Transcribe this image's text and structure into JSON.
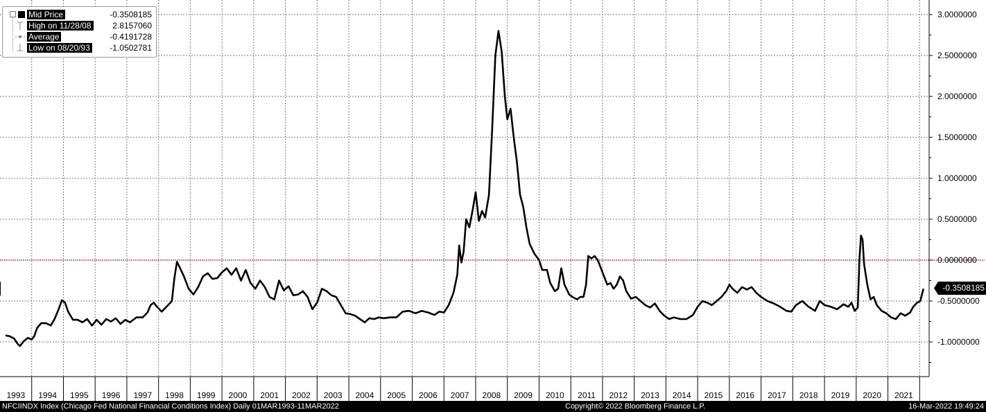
{
  "legend": {
    "mid_label": "Mid Price",
    "mid_value": "-0.3508185",
    "high_label": "High on 11/28/08",
    "high_value": "2.8157060",
    "avg_label": "Average",
    "avg_value": "-0.4191728",
    "low_label": "Low on 08/20/93",
    "low_value": "-1.0502781"
  },
  "last_value_badge": "-0.3508185",
  "footer": {
    "description": "NFCIINDX Index (Chicago Fed National Financial Conditions Index)  Daily 01MAR1993-11MAR2022",
    "copyright": "Copyright© 2022 Bloomberg Finance L.P.",
    "timestamp": "16-Mar-2022 19:49:24"
  },
  "colors": {
    "line": "#000000",
    "zero_line": "#8b0000",
    "grid": "#7a7a7a",
    "background": "#ffffff"
  },
  "chart_data": {
    "type": "line",
    "series": [
      {
        "name": "Mid Price",
        "points": [
          [
            1993.17,
            -0.92
          ],
          [
            1993.3,
            -0.93
          ],
          [
            1993.45,
            -0.96
          ],
          [
            1993.55,
            -1.02
          ],
          [
            1993.63,
            -1.05
          ],
          [
            1993.75,
            -0.99
          ],
          [
            1993.88,
            -0.95
          ],
          [
            1994.0,
            -0.97
          ],
          [
            1994.08,
            -0.93
          ],
          [
            1994.17,
            -0.83
          ],
          [
            1994.3,
            -0.77
          ],
          [
            1994.45,
            -0.77
          ],
          [
            1994.6,
            -0.8
          ],
          [
            1994.72,
            -0.72
          ],
          [
            1994.85,
            -0.6
          ],
          [
            1994.95,
            -0.49
          ],
          [
            1995.05,
            -0.52
          ],
          [
            1995.15,
            -0.63
          ],
          [
            1995.3,
            -0.73
          ],
          [
            1995.45,
            -0.73
          ],
          [
            1995.6,
            -0.76
          ],
          [
            1995.75,
            -0.72
          ],
          [
            1995.9,
            -0.8
          ],
          [
            1996.05,
            -0.73
          ],
          [
            1996.2,
            -0.79
          ],
          [
            1996.35,
            -0.72
          ],
          [
            1996.5,
            -0.75
          ],
          [
            1996.65,
            -0.71
          ],
          [
            1996.8,
            -0.78
          ],
          [
            1996.95,
            -0.73
          ],
          [
            1997.1,
            -0.76
          ],
          [
            1997.3,
            -0.7
          ],
          [
            1997.5,
            -0.7
          ],
          [
            1997.65,
            -0.64
          ],
          [
            1997.75,
            -0.55
          ],
          [
            1997.85,
            -0.52
          ],
          [
            1997.95,
            -0.57
          ],
          [
            1998.1,
            -0.63
          ],
          [
            1998.3,
            -0.55
          ],
          [
            1998.42,
            -0.5
          ],
          [
            1998.5,
            -0.22
          ],
          [
            1998.58,
            -0.02
          ],
          [
            1998.68,
            -0.1
          ],
          [
            1998.8,
            -0.2
          ],
          [
            1998.95,
            -0.35
          ],
          [
            1999.1,
            -0.42
          ],
          [
            1999.25,
            -0.33
          ],
          [
            1999.4,
            -0.2
          ],
          [
            1999.55,
            -0.16
          ],
          [
            1999.7,
            -0.23
          ],
          [
            1999.85,
            -0.22
          ],
          [
            2000.0,
            -0.15
          ],
          [
            2000.15,
            -0.1
          ],
          [
            2000.3,
            -0.18
          ],
          [
            2000.45,
            -0.1
          ],
          [
            2000.6,
            -0.25
          ],
          [
            2000.75,
            -0.12
          ],
          [
            2000.9,
            -0.28
          ],
          [
            2001.05,
            -0.35
          ],
          [
            2001.2,
            -0.25
          ],
          [
            2001.35,
            -0.33
          ],
          [
            2001.5,
            -0.45
          ],
          [
            2001.65,
            -0.48
          ],
          [
            2001.8,
            -0.25
          ],
          [
            2001.95,
            -0.37
          ],
          [
            2002.1,
            -0.32
          ],
          [
            2002.25,
            -0.43
          ],
          [
            2002.4,
            -0.42
          ],
          [
            2002.55,
            -0.38
          ],
          [
            2002.7,
            -0.45
          ],
          [
            2002.85,
            -0.6
          ],
          [
            2003.0,
            -0.52
          ],
          [
            2003.15,
            -0.35
          ],
          [
            2003.3,
            -0.38
          ],
          [
            2003.45,
            -0.43
          ],
          [
            2003.6,
            -0.45
          ],
          [
            2003.75,
            -0.55
          ],
          [
            2003.9,
            -0.65
          ],
          [
            2004.05,
            -0.66
          ],
          [
            2004.2,
            -0.68
          ],
          [
            2004.35,
            -0.72
          ],
          [
            2004.5,
            -0.76
          ],
          [
            2004.65,
            -0.71
          ],
          [
            2004.8,
            -0.72
          ],
          [
            2004.95,
            -0.7
          ],
          [
            2005.1,
            -0.71
          ],
          [
            2005.3,
            -0.7
          ],
          [
            2005.5,
            -0.7
          ],
          [
            2005.7,
            -0.63
          ],
          [
            2005.9,
            -0.62
          ],
          [
            2006.1,
            -0.65
          ],
          [
            2006.3,
            -0.62
          ],
          [
            2006.5,
            -0.64
          ],
          [
            2006.7,
            -0.67
          ],
          [
            2006.85,
            -0.63
          ],
          [
            2007.0,
            -0.64
          ],
          [
            2007.15,
            -0.55
          ],
          [
            2007.3,
            -0.4
          ],
          [
            2007.42,
            -0.18
          ],
          [
            2007.48,
            0.18
          ],
          [
            2007.55,
            -0.03
          ],
          [
            2007.62,
            0.1
          ],
          [
            2007.7,
            0.5
          ],
          [
            2007.8,
            0.4
          ],
          [
            2007.9,
            0.6
          ],
          [
            2008.0,
            0.83
          ],
          [
            2008.1,
            0.48
          ],
          [
            2008.2,
            0.6
          ],
          [
            2008.3,
            0.52
          ],
          [
            2008.42,
            0.8
          ],
          [
            2008.52,
            1.6
          ],
          [
            2008.62,
            2.5
          ],
          [
            2008.72,
            2.8
          ],
          [
            2008.82,
            2.55
          ],
          [
            2008.92,
            2.0
          ],
          [
            2009.0,
            1.72
          ],
          [
            2009.1,
            1.85
          ],
          [
            2009.2,
            1.5
          ],
          [
            2009.3,
            1.2
          ],
          [
            2009.4,
            0.8
          ],
          [
            2009.5,
            0.65
          ],
          [
            2009.6,
            0.4
          ],
          [
            2009.7,
            0.2
          ],
          [
            2009.85,
            0.08
          ],
          [
            2010.0,
            0.0
          ],
          [
            2010.1,
            -0.12
          ],
          [
            2010.25,
            -0.12
          ],
          [
            2010.35,
            -0.28
          ],
          [
            2010.5,
            -0.38
          ],
          [
            2010.6,
            -0.35
          ],
          [
            2010.7,
            -0.1
          ],
          [
            2010.8,
            -0.3
          ],
          [
            2010.95,
            -0.42
          ],
          [
            2011.05,
            -0.45
          ],
          [
            2011.2,
            -0.48
          ],
          [
            2011.3,
            -0.45
          ],
          [
            2011.4,
            -0.45
          ],
          [
            2011.48,
            -0.3
          ],
          [
            2011.55,
            0.05
          ],
          [
            2011.65,
            0.02
          ],
          [
            2011.75,
            0.05
          ],
          [
            2011.85,
            0.0
          ],
          [
            2011.95,
            -0.1
          ],
          [
            2012.05,
            -0.2
          ],
          [
            2012.15,
            -0.3
          ],
          [
            2012.25,
            -0.28
          ],
          [
            2012.35,
            -0.35
          ],
          [
            2012.45,
            -0.3
          ],
          [
            2012.55,
            -0.2
          ],
          [
            2012.65,
            -0.25
          ],
          [
            2012.75,
            -0.38
          ],
          [
            2012.9,
            -0.47
          ],
          [
            2013.05,
            -0.45
          ],
          [
            2013.2,
            -0.5
          ],
          [
            2013.35,
            -0.55
          ],
          [
            2013.5,
            -0.58
          ],
          [
            2013.65,
            -0.53
          ],
          [
            2013.8,
            -0.62
          ],
          [
            2013.95,
            -0.68
          ],
          [
            2014.1,
            -0.72
          ],
          [
            2014.25,
            -0.7
          ],
          [
            2014.45,
            -0.72
          ],
          [
            2014.65,
            -0.72
          ],
          [
            2014.85,
            -0.67
          ],
          [
            2015.0,
            -0.57
          ],
          [
            2015.15,
            -0.5
          ],
          [
            2015.3,
            -0.52
          ],
          [
            2015.45,
            -0.55
          ],
          [
            2015.6,
            -0.5
          ],
          [
            2015.75,
            -0.45
          ],
          [
            2015.9,
            -0.38
          ],
          [
            2016.0,
            -0.3
          ],
          [
            2016.1,
            -0.35
          ],
          [
            2016.25,
            -0.4
          ],
          [
            2016.4,
            -0.33
          ],
          [
            2016.55,
            -0.36
          ],
          [
            2016.7,
            -0.33
          ],
          [
            2016.85,
            -0.4
          ],
          [
            2017.0,
            -0.45
          ],
          [
            2017.2,
            -0.5
          ],
          [
            2017.4,
            -0.53
          ],
          [
            2017.6,
            -0.57
          ],
          [
            2017.8,
            -0.62
          ],
          [
            2017.95,
            -0.63
          ],
          [
            2018.1,
            -0.55
          ],
          [
            2018.3,
            -0.5
          ],
          [
            2018.5,
            -0.57
          ],
          [
            2018.7,
            -0.62
          ],
          [
            2018.85,
            -0.5
          ],
          [
            2019.0,
            -0.55
          ],
          [
            2019.2,
            -0.57
          ],
          [
            2019.4,
            -0.6
          ],
          [
            2019.6,
            -0.54
          ],
          [
            2019.75,
            -0.57
          ],
          [
            2019.85,
            -0.52
          ],
          [
            2019.95,
            -0.62
          ],
          [
            2020.05,
            -0.58
          ],
          [
            2020.1,
            0.0
          ],
          [
            2020.15,
            0.3
          ],
          [
            2020.2,
            0.25
          ],
          [
            2020.25,
            -0.05
          ],
          [
            2020.35,
            -0.3
          ],
          [
            2020.45,
            -0.48
          ],
          [
            2020.55,
            -0.45
          ],
          [
            2020.65,
            -0.55
          ],
          [
            2020.8,
            -0.62
          ],
          [
            2020.95,
            -0.65
          ],
          [
            2021.1,
            -0.7
          ],
          [
            2021.25,
            -0.72
          ],
          [
            2021.4,
            -0.65
          ],
          [
            2021.55,
            -0.68
          ],
          [
            2021.7,
            -0.64
          ],
          [
            2021.8,
            -0.57
          ],
          [
            2021.92,
            -0.52
          ],
          [
            2022.02,
            -0.5
          ],
          [
            2022.12,
            -0.35
          ]
        ]
      }
    ],
    "reference_line": 0,
    "x_ticks": [
      "1993",
      "1994",
      "1995",
      "1996",
      "1997",
      "1998",
      "1999",
      "2000",
      "2001",
      "2002",
      "2003",
      "2004",
      "2005",
      "2006",
      "2007",
      "2008",
      "2009",
      "2010",
      "2011",
      "2012",
      "2013",
      "2014",
      "2015",
      "2016",
      "2017",
      "2018",
      "2019",
      "2020",
      "2021"
    ],
    "y_ticks": [
      "3.0000000",
      "2.5000000",
      "2.0000000",
      "1.5000000",
      "1.0000000",
      "0.5000000",
      "0.0000000",
      "-0.5000000",
      "-1.0000000"
    ],
    "y_tick_values": [
      3.0,
      2.5,
      2.0,
      1.5,
      1.0,
      0.5,
      0.0,
      -0.5,
      -1.0
    ],
    "xlim": [
      1993.0,
      2022.3
    ],
    "ylim": [
      -1.4,
      3.15
    ],
    "grid": true,
    "legend_position": "top-left"
  }
}
